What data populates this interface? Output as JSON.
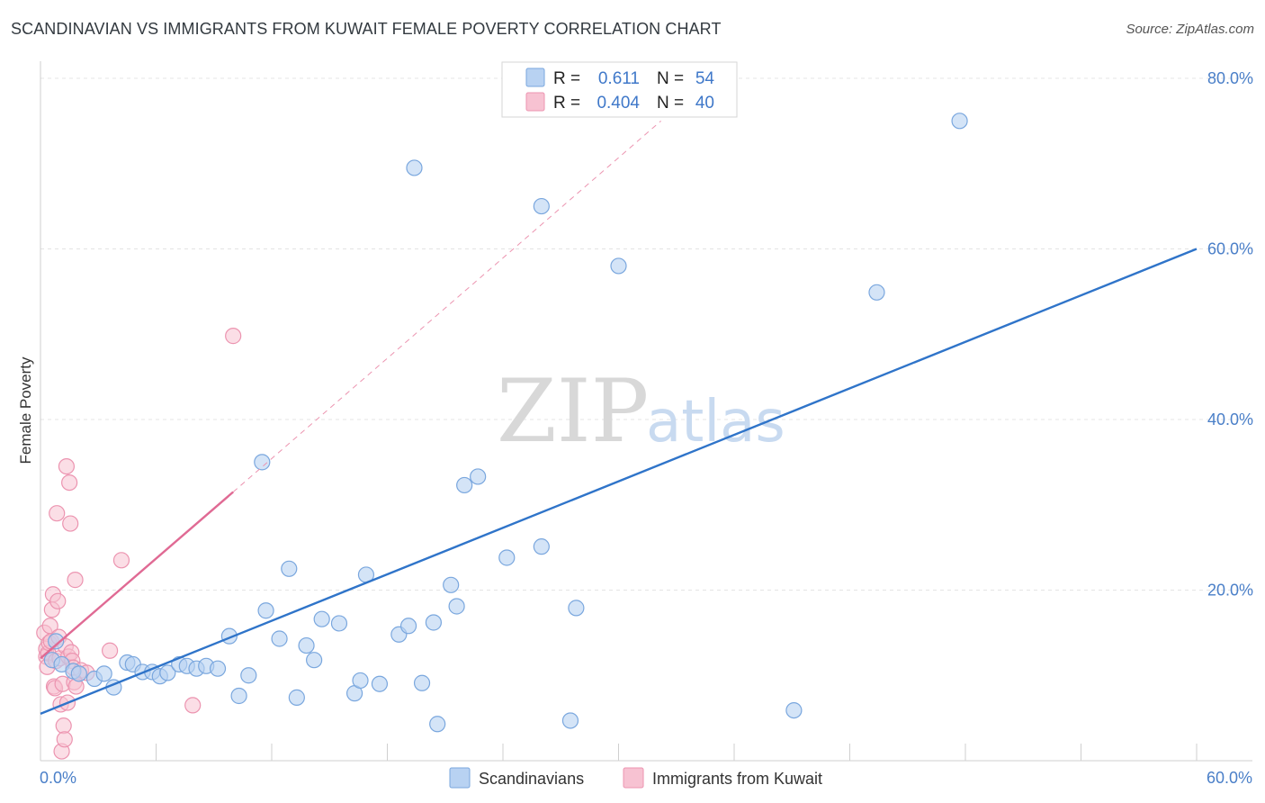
{
  "header": {
    "title": "SCANDINAVIAN VS IMMIGRANTS FROM KUWAIT FEMALE POVERTY CORRELATION CHART",
    "source": "Source: ZipAtlas.com"
  },
  "colors": {
    "blue_fill": "#b8d2f2",
    "blue_stroke": "#7aa7de",
    "blue_line": "#2f74c9",
    "pink_fill": "#f7c2d2",
    "pink_stroke": "#ec94b0",
    "pink_line": "#e06a94",
    "grid": "#e4e4e4",
    "axis_text": "#4a7fc8"
  },
  "legend": {
    "rows": [
      {
        "r_label": "R =",
        "r_value": "0.611",
        "n_label": "N =",
        "n_value": "54"
      },
      {
        "r_label": "R =",
        "r_value": "0.404",
        "n_label": "N =",
        "n_value": "40"
      }
    ]
  },
  "watermark": {
    "zip": "ZIP",
    "atlas": "atlas"
  },
  "chart_data": {
    "type": "scatter",
    "title": "SCANDINAVIAN VS IMMIGRANTS FROM KUWAIT FEMALE POVERTY CORRELATION CHART",
    "xlabel": "",
    "ylabel": "Female Poverty",
    "xlim": [
      0,
      60
    ],
    "ylim": [
      0,
      82
    ],
    "x_tick_labels": [
      "0.0%",
      "60.0%"
    ],
    "y_ticks": [
      20,
      40,
      60,
      80
    ],
    "y_tick_labels": [
      "20.0%",
      "40.0%",
      "60.0%",
      "80.0%"
    ],
    "grid": true,
    "legend_position": "top-center",
    "series": [
      {
        "name": "Scandinavians",
        "R": 0.611,
        "N": 54,
        "trend": {
          "x": [
            0,
            60
          ],
          "y": [
            5.5,
            60
          ]
        },
        "points": [
          [
            0.6,
            11.8
          ],
          [
            1.1,
            11.3
          ],
          [
            1.7,
            10.5
          ],
          [
            2.0,
            10.2
          ],
          [
            2.8,
            9.6
          ],
          [
            3.3,
            10.2
          ],
          [
            3.8,
            8.6
          ],
          [
            4.5,
            11.5
          ],
          [
            4.8,
            11.3
          ],
          [
            5.3,
            10.4
          ],
          [
            5.8,
            10.4
          ],
          [
            6.2,
            9.9
          ],
          [
            6.6,
            10.3
          ],
          [
            7.2,
            11.3
          ],
          [
            7.6,
            11.1
          ],
          [
            8.1,
            10.8
          ],
          [
            8.6,
            11.1
          ],
          [
            9.2,
            10.8
          ],
          [
            9.8,
            14.6
          ],
          [
            10.3,
            7.6
          ],
          [
            10.8,
            10.0
          ],
          [
            11.5,
            35.0
          ],
          [
            11.7,
            17.6
          ],
          [
            12.4,
            14.3
          ],
          [
            12.9,
            22.5
          ],
          [
            13.3,
            7.4
          ],
          [
            13.8,
            13.5
          ],
          [
            14.2,
            11.8
          ],
          [
            14.6,
            16.6
          ],
          [
            15.5,
            16.1
          ],
          [
            16.3,
            7.9
          ],
          [
            16.6,
            9.4
          ],
          [
            16.9,
            21.8
          ],
          [
            17.6,
            9.0
          ],
          [
            18.6,
            14.8
          ],
          [
            19.1,
            15.8
          ],
          [
            19.4,
            69.5
          ],
          [
            19.8,
            9.1
          ],
          [
            20.4,
            16.2
          ],
          [
            20.6,
            4.3
          ],
          [
            21.3,
            20.6
          ],
          [
            21.6,
            18.1
          ],
          [
            22.0,
            32.3
          ],
          [
            22.7,
            33.3
          ],
          [
            24.2,
            23.8
          ],
          [
            26.0,
            65.0
          ],
          [
            26.0,
            25.1
          ],
          [
            27.5,
            4.7
          ],
          [
            27.8,
            17.9
          ],
          [
            30.0,
            58.0
          ],
          [
            39.1,
            5.9
          ],
          [
            43.4,
            54.9
          ],
          [
            47.7,
            75.0
          ],
          [
            0.8,
            14.0
          ]
        ]
      },
      {
        "name": "Immigrants from Kuwait",
        "R": 0.404,
        "N": 40,
        "trend": {
          "x": [
            0,
            10
          ],
          "y": [
            12.0,
            31.5
          ]
        },
        "trend_extended": {
          "x": [
            10,
            32.2
          ],
          "y": [
            31.5,
            75.0
          ]
        },
        "points": [
          [
            0.2,
            15.0
          ],
          [
            0.3,
            13.1
          ],
          [
            0.3,
            12.2
          ],
          [
            0.35,
            11.0
          ],
          [
            0.4,
            12.6
          ],
          [
            0.45,
            13.8
          ],
          [
            0.5,
            15.8
          ],
          [
            0.55,
            14.0
          ],
          [
            0.6,
            17.7
          ],
          [
            0.65,
            19.5
          ],
          [
            0.7,
            8.7
          ],
          [
            0.75,
            8.5
          ],
          [
            0.8,
            11.7
          ],
          [
            0.85,
            29.0
          ],
          [
            0.9,
            18.7
          ],
          [
            0.95,
            14.5
          ],
          [
            1.0,
            12.0
          ],
          [
            1.05,
            6.6
          ],
          [
            1.1,
            1.1
          ],
          [
            1.15,
            9.0
          ],
          [
            1.2,
            4.1
          ],
          [
            1.25,
            2.5
          ],
          [
            1.3,
            13.4
          ],
          [
            1.35,
            34.5
          ],
          [
            1.4,
            6.8
          ],
          [
            1.45,
            12.2
          ],
          [
            1.5,
            32.6
          ],
          [
            1.55,
            27.8
          ],
          [
            1.6,
            12.7
          ],
          [
            1.65,
            11.7
          ],
          [
            1.7,
            10.9
          ],
          [
            1.75,
            9.2
          ],
          [
            1.8,
            21.2
          ],
          [
            1.85,
            8.7
          ],
          [
            2.1,
            10.6
          ],
          [
            2.4,
            10.3
          ],
          [
            3.6,
            12.9
          ],
          [
            4.2,
            23.5
          ],
          [
            7.9,
            6.5
          ],
          [
            10.0,
            49.8
          ]
        ]
      }
    ]
  }
}
